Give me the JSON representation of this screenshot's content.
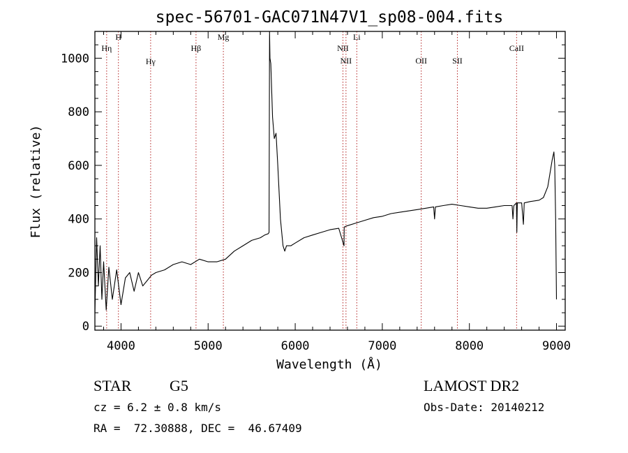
{
  "chart_data": {
    "type": "line",
    "title": "spec-56701-GAC071N47V1_sp08-004.fits",
    "xlabel": "Wavelength (Å)",
    "ylabel": "Flux (relative)",
    "xlim": [
      3700,
      9100
    ],
    "ylim": [
      -15,
      1100
    ],
    "xticks": [
      4000,
      5000,
      6000,
      7000,
      8000,
      9000
    ],
    "yticks": [
      0,
      200,
      400,
      600,
      800,
      1000
    ],
    "grid": false,
    "series": [
      {
        "color": "#000000",
        "x": [
          3700,
          3720,
          3740,
          3760,
          3780,
          3800,
          3830,
          3860,
          3900,
          3950,
          4000,
          4050,
          4100,
          4150,
          4200,
          4250,
          4300,
          4350,
          4400,
          4500,
          4600,
          4700,
          4800,
          4900,
          5000,
          5100,
          5200,
          5300,
          5400,
          5500,
          5600,
          5650,
          5690,
          5700,
          5705,
          5710,
          5720,
          5740,
          5760,
          5780,
          5800,
          5830,
          5860,
          5880,
          5900,
          5950,
          6000,
          6100,
          6200,
          6300,
          6400,
          6500,
          6560,
          6563,
          6600,
          6700,
          6800,
          6900,
          7000,
          7100,
          7200,
          7300,
          7400,
          7500,
          7590,
          7600,
          7610,
          7700,
          7800,
          7900,
          8000,
          8100,
          8200,
          8300,
          8400,
          8490,
          8500,
          8510,
          8540,
          8545,
          8550,
          8600,
          8620,
          8630,
          8700,
          8800,
          8850,
          8900,
          8930,
          8950,
          8970,
          8980,
          8990,
          9000
        ],
        "y": [
          50,
          330,
          150,
          300,
          100,
          240,
          60,
          220,
          100,
          210,
          80,
          180,
          200,
          130,
          200,
          150,
          170,
          190,
          200,
          210,
          230,
          240,
          230,
          250,
          240,
          240,
          250,
          280,
          300,
          320,
          330,
          340,
          345,
          350,
          1100,
          1000,
          980,
          780,
          700,
          720,
          600,
          400,
          300,
          280,
          300,
          300,
          310,
          330,
          340,
          350,
          360,
          365,
          300,
          370,
          375,
          385,
          395,
          405,
          410,
          420,
          425,
          430,
          435,
          440,
          445,
          400,
          445,
          450,
          455,
          450,
          445,
          440,
          440,
          445,
          450,
          450,
          400,
          450,
          460,
          350,
          460,
          460,
          380,
          460,
          465,
          470,
          480,
          520,
          580,
          620,
          650,
          600,
          400,
          100
        ]
      }
    ],
    "reference_lines": [
      {
        "label": "Hη",
        "x": 3835
      },
      {
        "label": "H",
        "x": 3970
      },
      {
        "label": "Hγ",
        "x": 4340
      },
      {
        "label": "Hβ",
        "x": 4861
      },
      {
        "label": "Mg",
        "x": 5175
      },
      {
        "label": "NII",
        "x": 6548
      },
      {
        "label": "NII",
        "x": 6583
      },
      {
        "label": "Li",
        "x": 6707
      },
      {
        "label": "OII",
        "x": 7447
      },
      {
        "label": "SII",
        "x": 7862
      },
      {
        "label": "CaII",
        "x": 8542
      }
    ],
    "reference_line_color": "#b22222"
  },
  "info": {
    "object_class": "STAR",
    "subclass": "G5",
    "survey": "LAMOST DR2",
    "redshift": "cz = 6.2 ± 0.8 km/s",
    "obs_date": "Obs-Date: 20140212",
    "coordinates": "RA =  72.30888, DEC =  46.67409"
  }
}
